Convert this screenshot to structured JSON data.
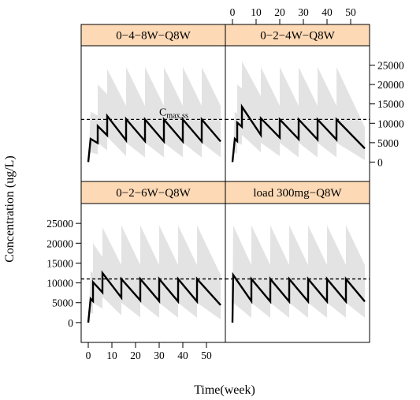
{
  "chart_data": {
    "type": "line",
    "layout": "2x2 trellis",
    "xlabel": "Time(week)",
    "ylabel": "Concentration (ug/L)",
    "xlim": [
      -3,
      58
    ],
    "ylim": [
      -5000,
      30000
    ],
    "xticks": [
      0,
      10,
      20,
      30,
      40,
      50
    ],
    "yticks": [
      0,
      5000,
      10000,
      15000,
      20000,
      25000
    ],
    "reference_line": {
      "y": 11000,
      "style": "dashed",
      "label_main": "C",
      "label_sub": "max,ss"
    },
    "colors": {
      "band": "#e3e3e3",
      "line": "#000000",
      "strip": "#fdd9b5"
    },
    "panels": [
      {
        "title": "0−4−8W−Q8W",
        "median": [
          [
            0,
            0
          ],
          [
            1,
            6000
          ],
          [
            4,
            4900
          ],
          [
            4.01,
            9300
          ],
          [
            8,
            6900
          ],
          [
            8.01,
            11900
          ],
          [
            16,
            5600
          ],
          [
            16.01,
            11100
          ],
          [
            24,
            5400
          ],
          [
            24.01,
            11000
          ],
          [
            32,
            5300
          ],
          [
            32.01,
            11000
          ],
          [
            40,
            5300
          ],
          [
            40.01,
            11000
          ],
          [
            48,
            5300
          ],
          [
            48.01,
            11000
          ],
          [
            56,
            5300
          ]
        ],
        "band_upper": [
          [
            0,
            0
          ],
          [
            1,
            13000
          ],
          [
            4,
            12000
          ],
          [
            4.01,
            20000
          ],
          [
            8,
            17500
          ],
          [
            8.01,
            24000
          ],
          [
            16,
            14500
          ],
          [
            16.01,
            24500
          ],
          [
            24,
            14500
          ],
          [
            24.01,
            24500
          ],
          [
            32,
            14500
          ],
          [
            32.01,
            24500
          ],
          [
            40,
            14500
          ],
          [
            40.01,
            24500
          ],
          [
            48,
            14500
          ],
          [
            48.01,
            24500
          ],
          [
            56,
            14500
          ]
        ],
        "band_lower": [
          [
            0,
            0
          ],
          [
            1,
            2500
          ],
          [
            4,
            2000
          ],
          [
            4.01,
            5000
          ],
          [
            8,
            3000
          ],
          [
            8.01,
            6500
          ],
          [
            16,
            1500
          ],
          [
            16.01,
            5000
          ],
          [
            24,
            1200
          ],
          [
            24.01,
            5000
          ],
          [
            32,
            1200
          ],
          [
            32.01,
            5000
          ],
          [
            40,
            1200
          ],
          [
            40.01,
            5000
          ],
          [
            48,
            1200
          ],
          [
            48.01,
            5000
          ],
          [
            56,
            1200
          ]
        ]
      },
      {
        "title": "0−2−4W−Q8W",
        "median": [
          [
            0,
            0
          ],
          [
            1,
            6000
          ],
          [
            2,
            5400
          ],
          [
            2.01,
            10200
          ],
          [
            4,
            9100
          ],
          [
            4.01,
            14300
          ],
          [
            12,
            7000
          ],
          [
            12.01,
            11300
          ],
          [
            20,
            6300
          ],
          [
            20.01,
            11000
          ],
          [
            28,
            5900
          ],
          [
            28.01,
            11000
          ],
          [
            36,
            5800
          ],
          [
            36.01,
            11000
          ],
          [
            44,
            5800
          ],
          [
            44.01,
            11000
          ],
          [
            56,
            3500
          ]
        ],
        "band_upper": [
          [
            0,
            0
          ],
          [
            1,
            13000
          ],
          [
            2,
            12500
          ],
          [
            2.01,
            20000
          ],
          [
            4,
            19000
          ],
          [
            4.01,
            26000
          ],
          [
            12,
            17000
          ],
          [
            12.01,
            24500
          ],
          [
            20,
            14500
          ],
          [
            20.01,
            24500
          ],
          [
            28,
            14500
          ],
          [
            28.01,
            24500
          ],
          [
            36,
            14500
          ],
          [
            36.01,
            24500
          ],
          [
            44,
            14500
          ],
          [
            44.01,
            24500
          ],
          [
            56,
            9000
          ]
        ],
        "band_lower": [
          [
            0,
            0
          ],
          [
            1,
            2500
          ],
          [
            2,
            2200
          ],
          [
            2.01,
            5000
          ],
          [
            4,
            4500
          ],
          [
            4.01,
            7000
          ],
          [
            12,
            2500
          ],
          [
            12.01,
            5000
          ],
          [
            20,
            1500
          ],
          [
            20.01,
            5000
          ],
          [
            28,
            1200
          ],
          [
            28.01,
            5000
          ],
          [
            36,
            1200
          ],
          [
            36.01,
            5000
          ],
          [
            44,
            1200
          ],
          [
            44.01,
            5000
          ],
          [
            56,
            500
          ]
        ]
      },
      {
        "title": "0−2−6W−Q8W",
        "median": [
          [
            0,
            0
          ],
          [
            1,
            6000
          ],
          [
            2,
            5400
          ],
          [
            2.01,
            10200
          ],
          [
            6,
            7600
          ],
          [
            6.01,
            12500
          ],
          [
            14,
            6300
          ],
          [
            14.01,
            11000
          ],
          [
            22,
            5600
          ],
          [
            22.01,
            11000
          ],
          [
            30,
            5400
          ],
          [
            30.01,
            11000
          ],
          [
            38,
            5300
          ],
          [
            38.01,
            11000
          ],
          [
            46,
            5300
          ],
          [
            46.01,
            11000
          ],
          [
            56,
            4400
          ]
        ],
        "band_upper": [
          [
            0,
            0
          ],
          [
            1,
            13000
          ],
          [
            2,
            12500
          ],
          [
            2.01,
            20000
          ],
          [
            6,
            16500
          ],
          [
            6.01,
            24000
          ],
          [
            14,
            14500
          ],
          [
            14.01,
            24500
          ],
          [
            22,
            14500
          ],
          [
            22.01,
            24500
          ],
          [
            30,
            14500
          ],
          [
            30.01,
            24500
          ],
          [
            38,
            14500
          ],
          [
            38.01,
            24500
          ],
          [
            46,
            14500
          ],
          [
            46.01,
            24500
          ],
          [
            56,
            12000
          ]
        ],
        "band_lower": [
          [
            0,
            0
          ],
          [
            1,
            2500
          ],
          [
            2,
            2200
          ],
          [
            2.01,
            5000
          ],
          [
            6,
            3500
          ],
          [
            6.01,
            6500
          ],
          [
            14,
            1800
          ],
          [
            14.01,
            5000
          ],
          [
            22,
            1300
          ],
          [
            22.01,
            5000
          ],
          [
            30,
            1200
          ],
          [
            30.01,
            5000
          ],
          [
            38,
            1200
          ],
          [
            38.01,
            5000
          ],
          [
            46,
            1200
          ],
          [
            46.01,
            5000
          ],
          [
            56,
            800
          ]
        ]
      },
      {
        "title": "load 300mg−Q8W",
        "median": [
          [
            0,
            0
          ],
          [
            0.3,
            12000
          ],
          [
            8,
            5400
          ],
          [
            8.01,
            11000
          ],
          [
            16,
            5300
          ],
          [
            16.01,
            11000
          ],
          [
            24,
            5300
          ],
          [
            24.01,
            11000
          ],
          [
            32,
            5300
          ],
          [
            32.01,
            11000
          ],
          [
            40,
            5300
          ],
          [
            40.01,
            11000
          ],
          [
            48,
            5300
          ],
          [
            48.01,
            11000
          ],
          [
            56,
            5300
          ]
        ],
        "band_upper": [
          [
            0,
            0
          ],
          [
            0.3,
            24500
          ],
          [
            8,
            14500
          ],
          [
            8.01,
            24500
          ],
          [
            16,
            14500
          ],
          [
            16.01,
            24500
          ],
          [
            24,
            14500
          ],
          [
            24.01,
            24500
          ],
          [
            32,
            14500
          ],
          [
            32.01,
            24500
          ],
          [
            40,
            14500
          ],
          [
            40.01,
            24500
          ],
          [
            48,
            14500
          ],
          [
            48.01,
            24500
          ],
          [
            56,
            14500
          ]
        ],
        "band_lower": [
          [
            0,
            0
          ],
          [
            0.3,
            5000
          ],
          [
            8,
            1200
          ],
          [
            8.01,
            5000
          ],
          [
            16,
            1200
          ],
          [
            16.01,
            5000
          ],
          [
            24,
            1200
          ],
          [
            24.01,
            5000
          ],
          [
            32,
            1200
          ],
          [
            32.01,
            5000
          ],
          [
            40,
            1200
          ],
          [
            40.01,
            5000
          ],
          [
            48,
            1200
          ],
          [
            48.01,
            5000
          ],
          [
            56,
            1200
          ]
        ]
      }
    ]
  }
}
